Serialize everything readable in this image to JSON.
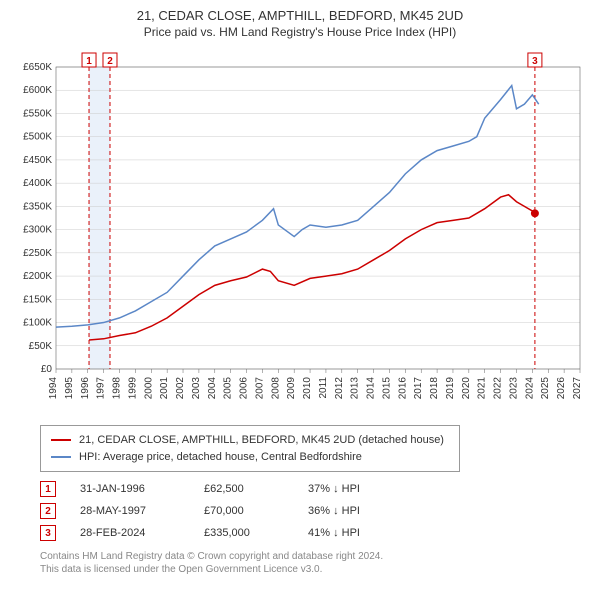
{
  "title": "21, CEDAR CLOSE, AMPTHILL, BEDFORD, MK45 2UD",
  "subtitle": "Price paid vs. HM Land Registry's House Price Index (HPI)",
  "chart": {
    "type": "line",
    "background_color": "#ffffff",
    "grid_color": "#cccccc",
    "axis_color": "#666666",
    "xlim": [
      1994,
      2027
    ],
    "ylim": [
      0,
      650000
    ],
    "ytick_step": 50000,
    "ytick_labels": [
      "£0",
      "£50K",
      "£100K",
      "£150K",
      "£200K",
      "£250K",
      "£300K",
      "£350K",
      "£400K",
      "£450K",
      "£500K",
      "£550K",
      "£600K",
      "£650K"
    ],
    "xtick_step": 1,
    "xtick_labels": [
      "1994",
      "1995",
      "1996",
      "1997",
      "1998",
      "1999",
      "2000",
      "2001",
      "2002",
      "2003",
      "2004",
      "2005",
      "2006",
      "2007",
      "2008",
      "2009",
      "2010",
      "2011",
      "2012",
      "2013",
      "2014",
      "2015",
      "2016",
      "2017",
      "2018",
      "2019",
      "2020",
      "2021",
      "2022",
      "2023",
      "2024",
      "2025",
      "2026",
      "2027"
    ],
    "label_fontsize": 10,
    "tick_fontsize": 10,
    "highlight_band": {
      "start": 1996.08,
      "end": 1997.4,
      "color": "#eaf1fa"
    },
    "series": {
      "property": {
        "color": "#cc0000",
        "line_width": 1.5,
        "data": [
          [
            1996.08,
            62500
          ],
          [
            1997,
            65000
          ],
          [
            1998,
            72000
          ],
          [
            1999,
            78000
          ],
          [
            2000,
            92000
          ],
          [
            2001,
            110000
          ],
          [
            2002,
            135000
          ],
          [
            2003,
            160000
          ],
          [
            2004,
            180000
          ],
          [
            2005,
            190000
          ],
          [
            2006,
            198000
          ],
          [
            2007,
            215000
          ],
          [
            2007.5,
            210000
          ],
          [
            2008,
            190000
          ],
          [
            2009,
            180000
          ],
          [
            2010,
            195000
          ],
          [
            2011,
            200000
          ],
          [
            2012,
            205000
          ],
          [
            2013,
            215000
          ],
          [
            2014,
            235000
          ],
          [
            2015,
            255000
          ],
          [
            2016,
            280000
          ],
          [
            2017,
            300000
          ],
          [
            2018,
            315000
          ],
          [
            2019,
            320000
          ],
          [
            2020,
            325000
          ],
          [
            2021,
            345000
          ],
          [
            2022,
            370000
          ],
          [
            2022.5,
            375000
          ],
          [
            2023,
            360000
          ],
          [
            2023.5,
            350000
          ],
          [
            2024,
            340000
          ],
          [
            2024.16,
            335000
          ]
        ],
        "marker": {
          "x": 2024.16,
          "y": 335000,
          "shape": "circle",
          "size": 4
        }
      },
      "hpi": {
        "color": "#5b87c7",
        "line_width": 1.5,
        "data": [
          [
            1994,
            90000
          ],
          [
            1995,
            92000
          ],
          [
            1996,
            95000
          ],
          [
            1997,
            100000
          ],
          [
            1998,
            110000
          ],
          [
            1999,
            125000
          ],
          [
            2000,
            145000
          ],
          [
            2001,
            165000
          ],
          [
            2002,
            200000
          ],
          [
            2003,
            235000
          ],
          [
            2004,
            265000
          ],
          [
            2005,
            280000
          ],
          [
            2006,
            295000
          ],
          [
            2007,
            320000
          ],
          [
            2007.7,
            345000
          ],
          [
            2008,
            310000
          ],
          [
            2009,
            285000
          ],
          [
            2009.5,
            300000
          ],
          [
            2010,
            310000
          ],
          [
            2011,
            305000
          ],
          [
            2012,
            310000
          ],
          [
            2013,
            320000
          ],
          [
            2014,
            350000
          ],
          [
            2015,
            380000
          ],
          [
            2016,
            420000
          ],
          [
            2017,
            450000
          ],
          [
            2018,
            470000
          ],
          [
            2019,
            480000
          ],
          [
            2020,
            490000
          ],
          [
            2020.5,
            500000
          ],
          [
            2021,
            540000
          ],
          [
            2022,
            580000
          ],
          [
            2022.7,
            610000
          ],
          [
            2023,
            560000
          ],
          [
            2023.5,
            570000
          ],
          [
            2024,
            590000
          ],
          [
            2024.4,
            570000
          ]
        ]
      }
    },
    "transaction_markers": [
      {
        "n": 1,
        "x": 1996.08,
        "color": "#cc0000",
        "dash": "4,3"
      },
      {
        "n": 2,
        "x": 1997.4,
        "color": "#cc0000",
        "dash": "4,3"
      },
      {
        "n": 3,
        "x": 2024.16,
        "color": "#cc0000",
        "dash": "4,3"
      }
    ]
  },
  "legend": [
    {
      "color": "#cc0000",
      "label": "21, CEDAR CLOSE, AMPTHILL, BEDFORD, MK45 2UD (detached house)"
    },
    {
      "color": "#5b87c7",
      "label": "HPI: Average price, detached house, Central Bedfordshire"
    }
  ],
  "transactions": [
    {
      "n": "1",
      "date": "31-JAN-1996",
      "price": "£62,500",
      "pct": "37% ↓ HPI",
      "color": "#cc0000"
    },
    {
      "n": "2",
      "date": "28-MAY-1997",
      "price": "£70,000",
      "pct": "36% ↓ HPI",
      "color": "#cc0000"
    },
    {
      "n": "3",
      "date": "28-FEB-2024",
      "price": "£335,000",
      "pct": "41% ↓ HPI",
      "color": "#cc0000"
    }
  ],
  "footer_line1": "Contains HM Land Registry data © Crown copyright and database right 2024.",
  "footer_line2": "This data is licensed under the Open Government Licence v3.0."
}
